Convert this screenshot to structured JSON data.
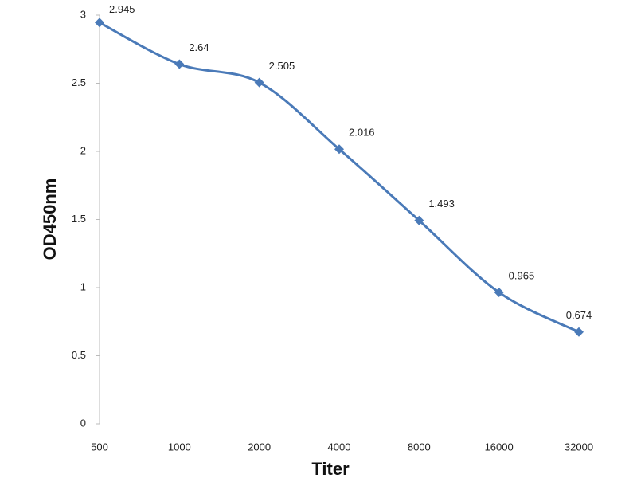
{
  "chart_data": {
    "type": "line",
    "x_label": "Titer",
    "y_label": "OD450nm",
    "categories": [
      "500",
      "1000",
      "2000",
      "4000",
      "8000",
      "16000",
      "32000"
    ],
    "series": [
      {
        "color": "#4a7ab8",
        "values": [
          2.945,
          2.64,
          2.505,
          2.016,
          1.493,
          0.965,
          0.674
        ]
      }
    ],
    "ylim": [
      0,
      3
    ],
    "yticks": [
      0,
      0.5,
      1,
      1.5,
      2,
      2.5,
      3
    ],
    "grid": false,
    "smooth": true
  }
}
